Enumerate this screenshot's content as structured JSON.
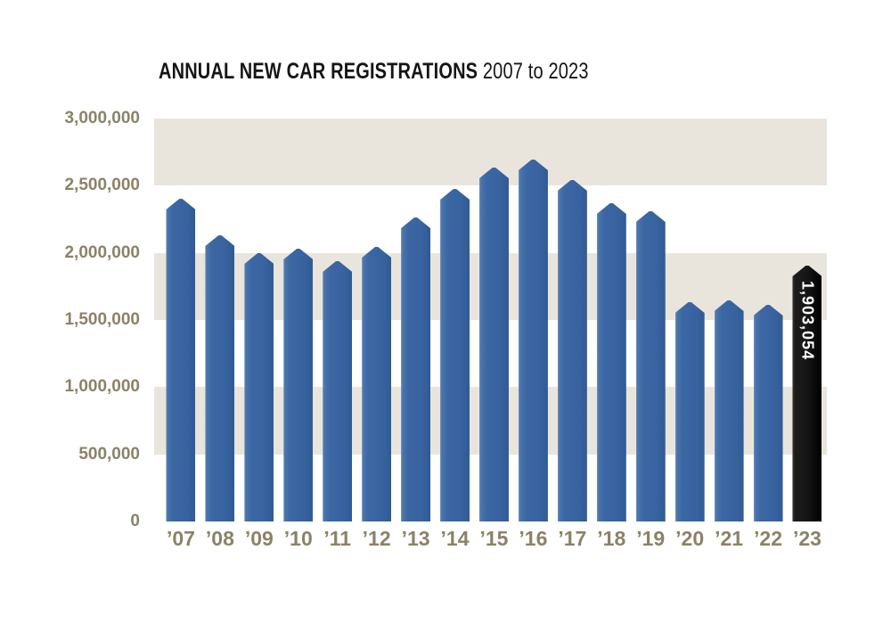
{
  "title": {
    "main": "ANNUAL NEW CAR REGISTRATIONS",
    "range": " 2007 to 2023"
  },
  "chart_data": {
    "type": "bar",
    "title": "ANNUAL NEW CAR REGISTRATIONS 2007 to 2023",
    "categories": [
      "’07",
      "’08",
      "’09",
      "’10",
      "’11",
      "’12",
      "’13",
      "’14",
      "’15",
      "’16",
      "’17",
      "’18",
      "’19",
      "’20",
      "’21",
      "’22",
      "’23"
    ],
    "values": [
      2404007,
      2131795,
      1994999,
      2030846,
      1941253,
      2044609,
      2264737,
      2476435,
      2633503,
      2692786,
      2540617,
      2367147,
      2311140,
      1631064,
      1647181,
      1614063,
      1903054
    ],
    "xlabel": "",
    "ylabel": "",
    "ylim": [
      0,
      3000000
    ],
    "yticks": {
      "values": [
        0,
        500000,
        1000000,
        1500000,
        2000000,
        2500000,
        3000000
      ],
      "labels": [
        "0",
        "500,000",
        "1,000,000",
        "1,500,000",
        "2,000,000",
        "2,500,000",
        "3,000,000"
      ]
    },
    "grid": "alternating-horizontal-bands",
    "legend": "none",
    "highlight": {
      "index": 16,
      "category": "’23",
      "data_label": "1,903,054",
      "bar_color": "#191919",
      "label_color": "#ffffff"
    },
    "colors": {
      "bar": "#3b67a3",
      "band": "#e9e5dd",
      "axis_text": "#8b8267",
      "title_text": "#151515",
      "background": "#ffffff"
    }
  }
}
